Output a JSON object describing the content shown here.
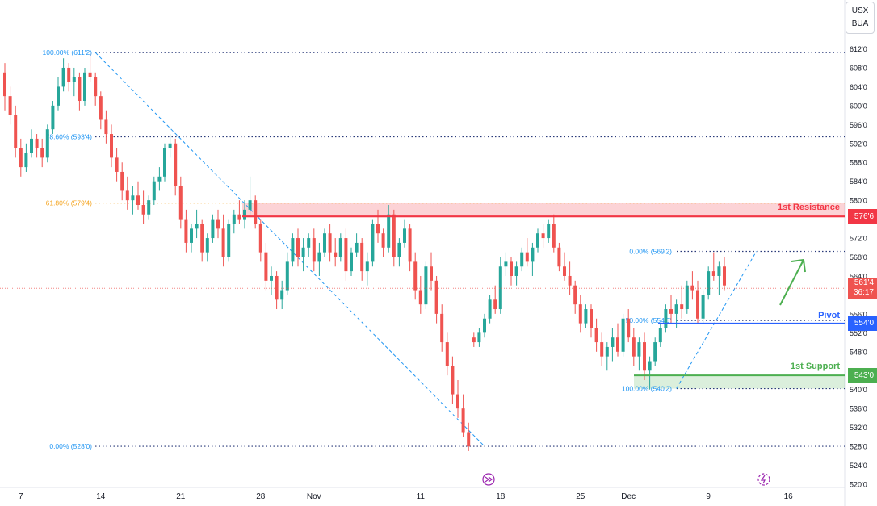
{
  "symbol": {
    "line1": "USX",
    "line2": "BUA"
  },
  "chart_data": {
    "type": "candlestick",
    "title": "",
    "ylim": [
      519,
      616
    ],
    "yticks": [
      "612'0",
      "608'0",
      "604'0",
      "600'0",
      "596'0",
      "592'0",
      "588'0",
      "584'0",
      "580'0",
      "576'0",
      "572'0",
      "568'0",
      "564'0",
      "560'0",
      "556'0",
      "552'0",
      "548'0",
      "544'0",
      "540'0",
      "536'0",
      "532'0",
      "528'0",
      "524'0",
      "520'0"
    ],
    "ytick_values": [
      612,
      608,
      604,
      600,
      596,
      592,
      588,
      584,
      580,
      576,
      572,
      568,
      564,
      560,
      556,
      552,
      548,
      544,
      540,
      536,
      532,
      528,
      524,
      520
    ],
    "xticks": [
      {
        "label": "7",
        "bar": 3
      },
      {
        "label": "14",
        "bar": 18
      },
      {
        "label": "21",
        "bar": 33
      },
      {
        "label": "28",
        "bar": 48
      },
      {
        "label": "Nov",
        "bar": 58
      },
      {
        "label": "11",
        "bar": 78
      },
      {
        "label": "18",
        "bar": 93
      },
      {
        "label": "25",
        "bar": 108
      },
      {
        "label": "Dec",
        "bar": 117
      },
      {
        "label": "9",
        "bar": 132
      },
      {
        "label": "16",
        "bar": 147
      }
    ],
    "ohlc": [
      [
        607,
        609,
        599,
        602
      ],
      [
        602,
        604,
        596,
        598
      ],
      [
        598,
        600,
        589,
        591
      ],
      [
        591,
        593,
        585,
        587
      ],
      [
        587,
        592,
        586,
        590
      ],
      [
        590,
        595,
        589,
        593
      ],
      [
        593,
        594,
        589,
        591
      ],
      [
        591,
        593,
        587,
        589
      ],
      [
        589,
        596,
        588,
        595
      ],
      [
        595,
        601,
        594,
        600
      ],
      [
        600,
        606,
        599,
        604
      ],
      [
        604,
        610,
        603,
        608
      ],
      [
        608,
        609,
        603,
        605
      ],
      [
        605,
        608,
        602,
        606
      ],
      [
        606,
        607,
        599,
        601
      ],
      [
        601,
        608,
        600,
        607
      ],
      [
        607,
        611,
        605,
        606
      ],
      [
        606,
        607,
        600,
        602
      ],
      [
        602,
        603,
        595,
        597
      ],
      [
        597,
        599,
        592,
        594
      ],
      [
        594,
        596,
        587,
        589
      ],
      [
        589,
        591,
        584,
        586
      ],
      [
        586,
        588,
        580,
        582
      ],
      [
        582,
        585,
        578,
        580
      ],
      [
        580,
        583,
        577,
        581
      ],
      [
        581,
        584,
        578,
        579
      ],
      [
        579,
        582,
        575,
        577
      ],
      [
        577,
        581,
        576,
        580
      ],
      [
        580,
        585,
        579,
        584
      ],
      [
        584,
        587,
        582,
        585
      ],
      [
        585,
        592,
        584,
        591
      ],
      [
        591,
        594,
        589,
        592
      ],
      [
        592,
        593,
        581,
        583
      ],
      [
        583,
        585,
        574,
        576
      ],
      [
        576,
        578,
        569,
        571
      ],
      [
        571,
        575,
        569,
        574
      ],
      [
        574,
        578,
        572,
        575
      ],
      [
        575,
        576,
        567,
        569
      ],
      [
        569,
        573,
        567,
        572
      ],
      [
        572,
        577,
        571,
        576
      ],
      [
        576,
        578,
        572,
        574
      ],
      [
        574,
        577,
        566,
        568
      ],
      [
        568,
        576,
        567,
        575
      ],
      [
        575,
        578,
        573,
        577
      ],
      [
        577,
        580,
        575,
        576
      ],
      [
        576,
        580,
        574,
        578
      ],
      [
        578,
        585,
        577,
        580
      ],
      [
        580,
        581,
        574,
        575
      ],
      [
        575,
        576,
        567,
        569
      ],
      [
        569,
        571,
        561,
        563
      ],
      [
        563,
        566,
        560,
        564
      ],
      [
        564,
        565,
        557,
        559
      ],
      [
        559,
        563,
        557,
        561
      ],
      [
        561,
        569,
        560,
        567
      ],
      [
        567,
        573,
        566,
        572
      ],
      [
        572,
        574,
        566,
        568
      ],
      [
        568,
        572,
        565,
        570
      ],
      [
        570,
        573,
        568,
        572
      ],
      [
        572,
        574,
        565,
        567
      ],
      [
        567,
        571,
        564,
        569
      ],
      [
        569,
        574,
        568,
        573
      ],
      [
        573,
        575,
        567,
        569
      ],
      [
        569,
        572,
        566,
        568
      ],
      [
        568,
        573,
        567,
        572
      ],
      [
        572,
        574,
        563,
        565
      ],
      [
        565,
        570,
        564,
        569
      ],
      [
        569,
        573,
        568,
        571
      ],
      [
        571,
        572,
        563,
        565
      ],
      [
        565,
        569,
        562,
        567
      ],
      [
        567,
        576,
        566,
        575
      ],
      [
        575,
        578,
        571,
        573
      ],
      [
        573,
        574,
        568,
        570
      ],
      [
        570,
        579,
        569,
        577
      ],
      [
        577,
        578,
        566,
        568
      ],
      [
        568,
        572,
        566,
        571
      ],
      [
        571,
        576,
        570,
        574
      ],
      [
        574,
        575,
        565,
        567
      ],
      [
        567,
        569,
        559,
        561
      ],
      [
        561,
        564,
        556,
        558
      ],
      [
        558,
        567,
        557,
        566
      ],
      [
        566,
        569,
        561,
        563
      ],
      [
        563,
        564,
        554,
        556
      ],
      [
        556,
        558,
        548,
        550
      ],
      [
        550,
        552,
        543,
        545
      ],
      [
        545,
        547,
        537,
        539
      ],
      [
        539,
        542,
        534,
        536
      ],
      [
        536,
        539,
        530,
        531
      ],
      [
        531,
        533,
        527,
        528
      ],
      [
        551,
        552,
        549,
        550
      ],
      [
        550,
        553,
        549,
        552
      ],
      [
        552,
        556,
        551,
        555
      ],
      [
        555,
        560,
        554,
        559
      ],
      [
        559,
        562,
        556,
        557
      ],
      [
        557,
        568,
        556,
        566
      ],
      [
        566,
        569,
        564,
        567
      ],
      [
        567,
        568,
        562,
        564
      ],
      [
        564,
        567,
        562,
        566
      ],
      [
        566,
        570,
        565,
        569
      ],
      [
        569,
        572,
        566,
        567
      ],
      [
        567,
        571,
        564,
        570
      ],
      [
        570,
        574,
        569,
        573
      ],
      [
        573,
        575,
        570,
        572
      ],
      [
        572,
        576,
        571,
        575
      ],
      [
        575,
        577,
        569,
        570
      ],
      [
        570,
        571,
        565,
        566
      ],
      [
        566,
        569,
        563,
        564
      ],
      [
        564,
        567,
        560,
        562
      ],
      [
        562,
        563,
        556,
        558
      ],
      [
        558,
        560,
        552,
        554
      ],
      [
        554,
        558,
        553,
        557
      ],
      [
        557,
        558,
        551,
        553
      ],
      [
        553,
        555,
        548,
        550
      ],
      [
        550,
        552,
        545,
        547
      ],
      [
        547,
        550,
        544,
        549
      ],
      [
        549,
        553,
        546,
        551
      ],
      [
        551,
        554,
        547,
        548
      ],
      [
        548,
        556,
        547,
        555
      ],
      [
        555,
        557,
        550,
        551
      ],
      [
        551,
        553,
        545,
        547
      ],
      [
        547,
        551,
        544,
        550
      ],
      [
        550,
        552,
        542,
        544
      ],
      [
        544,
        547,
        540,
        546
      ],
      [
        546,
        551,
        545,
        550
      ],
      [
        550,
        554,
        549,
        553
      ],
      [
        553,
        558,
        552,
        557
      ],
      [
        557,
        560,
        554,
        556
      ],
      [
        556,
        559,
        553,
        558
      ],
      [
        558,
        562,
        555,
        557
      ],
      [
        557,
        563,
        556,
        562
      ],
      [
        562,
        565,
        559,
        561
      ],
      [
        561,
        563,
        554,
        555
      ],
      [
        555,
        561,
        554,
        560
      ],
      [
        560,
        566,
        559,
        565
      ],
      [
        565,
        569,
        563,
        564
      ],
      [
        564,
        567,
        560,
        566
      ],
      [
        566,
        568,
        561,
        562
      ]
    ],
    "resistance": {
      "label": "1st Resistance",
      "value": 576.6,
      "tag": "576'6",
      "zone": [
        576.3,
        579.4
      ]
    },
    "pivot": {
      "label": "Pivot",
      "value": 554.0,
      "tag": "554'0"
    },
    "support": {
      "label": "1st Support",
      "value": 543.0,
      "tag": "543'0",
      "zone": [
        540.2,
        543.0
      ]
    },
    "current": {
      "price": "561'4",
      "timer": "36:17",
      "value": 561.4
    },
    "fib_left": [
      {
        "label": "100.00% (611'2)",
        "value": 611.2
      },
      {
        "label": "78.60% (593'4)",
        "value": 593.4
      },
      {
        "label": "61.80% (579'4)",
        "value": 579.4
      },
      {
        "label": "0.00% (528'0)",
        "value": 528.0
      }
    ],
    "fib_right": [
      {
        "label": "0.00% (569'2)",
        "value": 569.2
      },
      {
        "label": "50.00% (554'6)",
        "value": 554.6
      },
      {
        "label": "100.00% (540'2)",
        "value": 540.2
      }
    ],
    "colors": {
      "up": "#26a69a",
      "down": "#ef5350",
      "resistance": "#f23645",
      "pivot": "#2962ff",
      "support": "#4caf50",
      "fib": "#2196f3",
      "fib_gold": "#f5a623",
      "grid": "#f0f3fa",
      "axis_text": "#131722"
    }
  }
}
